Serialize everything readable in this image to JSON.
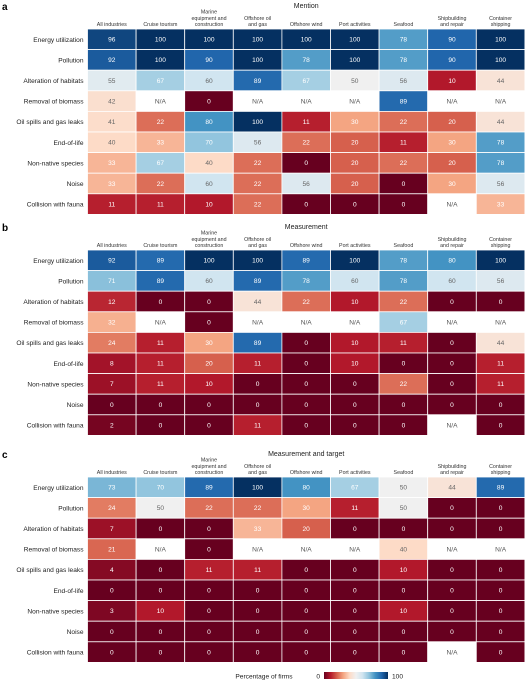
{
  "chart_data": [
    {
      "type": "heatmap",
      "panel_label": "a",
      "title": "Mention",
      "columns": [
        "All industries",
        "Cruise tourism",
        "Marine equipment and construction",
        "Offshore oil and gas",
        "Offshore wind",
        "Port activities",
        "Seafood",
        "Shipbuilding and repair",
        "Container shipping"
      ],
      "rows": [
        "Energy utilization",
        "Pollution",
        "Alteration of habitats",
        "Removal of biomass",
        "Oil spills and gas leaks",
        "End-of-life",
        "Non-native species",
        "Noise",
        "Collision with fauna"
      ],
      "values": [
        [
          "96",
          "100",
          "100",
          "100",
          "100",
          "100",
          "78",
          "90",
          "100"
        ],
        [
          "92",
          "100",
          "90",
          "100",
          "78",
          "100",
          "78",
          "90",
          "100"
        ],
        [
          "55",
          "67",
          "60",
          "89",
          "67",
          "50",
          "56",
          "10",
          "44"
        ],
        [
          "42",
          "N/A",
          "0",
          "N/A",
          "N/A",
          "N/A",
          "89",
          "N/A",
          "N/A"
        ],
        [
          "41",
          "22",
          "80",
          "100",
          "11",
          "30",
          "22",
          "20",
          "44"
        ],
        [
          "40",
          "33",
          "70",
          "56",
          "22",
          "20",
          "11",
          "30",
          "78"
        ],
        [
          "33",
          "67",
          "40",
          "22",
          "0",
          "20",
          "22",
          "20",
          "78"
        ],
        [
          "33",
          "22",
          "60",
          "22",
          "56",
          "20",
          "0",
          "30",
          "56"
        ],
        [
          "11",
          "11",
          "10",
          "22",
          "0",
          "0",
          "0",
          "N/A",
          "33"
        ]
      ]
    },
    {
      "type": "heatmap",
      "panel_label": "b",
      "title": "Measurement",
      "columns": [
        "All industries",
        "Cruise tourism",
        "Marine equipment and construction",
        "Offshore oil and gas",
        "Offshore wind",
        "Port activities",
        "Seafood",
        "Shipbuilding and repair",
        "Container shipping"
      ],
      "rows": [
        "Energy utilization",
        "Pollution",
        "Alteration of habitats",
        "Removal of biomass",
        "Oil spills and gas leaks",
        "End-of-life",
        "Non-native species",
        "Noise",
        "Collision with fauna"
      ],
      "values": [
        [
          "92",
          "89",
          "100",
          "100",
          "89",
          "100",
          "78",
          "80",
          "100"
        ],
        [
          "71",
          "89",
          "60",
          "89",
          "78",
          "60",
          "78",
          "60",
          "56"
        ],
        [
          "12",
          "0",
          "0",
          "44",
          "22",
          "10",
          "22",
          "0",
          "0"
        ],
        [
          "32",
          "N/A",
          "0",
          "N/A",
          "N/A",
          "N/A",
          "67",
          "N/A",
          "N/A"
        ],
        [
          "24",
          "11",
          "30",
          "89",
          "0",
          "10",
          "11",
          "0",
          "44"
        ],
        [
          "8",
          "11",
          "20",
          "11",
          "0",
          "10",
          "0",
          "0",
          "11"
        ],
        [
          "7",
          "11",
          "10",
          "0",
          "0",
          "0",
          "22",
          "0",
          "11"
        ],
        [
          "0",
          "0",
          "0",
          "0",
          "0",
          "0",
          "0",
          "0",
          "0"
        ],
        [
          "2",
          "0",
          "0",
          "11",
          "0",
          "0",
          "0",
          "N/A",
          "0"
        ]
      ]
    },
    {
      "type": "heatmap",
      "panel_label": "c",
      "title": "Measurement and target",
      "columns": [
        "All industries",
        "Cruise tourism",
        "Marine equipment and construction",
        "Offshore oil and gas",
        "Offshore wind",
        "Port activities",
        "Seafood",
        "Shipbuilding and repair",
        "Container shipping"
      ],
      "rows": [
        "Energy utilization",
        "Pollution",
        "Alteration of habitats",
        "Removal of biomass",
        "Oil spills and gas leaks",
        "End-of-life",
        "Non-native species",
        "Noise",
        "Collision with fauna"
      ],
      "values": [
        [
          "73",
          "70",
          "89",
          "100",
          "80",
          "67",
          "50",
          "44",
          "89"
        ],
        [
          "24",
          "50",
          "22",
          "22",
          "30",
          "11",
          "50",
          "0",
          "0"
        ],
        [
          "7",
          "0",
          "0",
          "33",
          "20",
          "0",
          "0",
          "0",
          "0"
        ],
        [
          "21",
          "N/A",
          "0",
          "N/A",
          "N/A",
          "N/A",
          "40",
          "N/A",
          "N/A"
        ],
        [
          "4",
          "0",
          "11",
          "11",
          "0",
          "0",
          "10",
          "0",
          "0"
        ],
        [
          "0",
          "0",
          "0",
          "0",
          "0",
          "0",
          "0",
          "0",
          "0"
        ],
        [
          "3",
          "10",
          "0",
          "0",
          "0",
          "0",
          "10",
          "0",
          "0"
        ],
        [
          "0",
          "0",
          "0",
          "0",
          "0",
          "0",
          "0",
          "0",
          "0"
        ],
        [
          "0",
          "0",
          "0",
          "0",
          "0",
          "0",
          "0",
          "N/A",
          "0"
        ]
      ]
    }
  ],
  "colorbar": {
    "label": "Percentage of firms",
    "min_label": "0",
    "max_label": "100",
    "min": 0,
    "max": 100,
    "colors": [
      "#67001f",
      "#b2182b",
      "#d6604d",
      "#f4a582",
      "#fddbc7",
      "#f0f0f0",
      "#d1e5f0",
      "#92c5de",
      "#4393c3",
      "#2166ac",
      "#053061"
    ]
  },
  "na_color": "#ffffff",
  "na_label": "N/A"
}
